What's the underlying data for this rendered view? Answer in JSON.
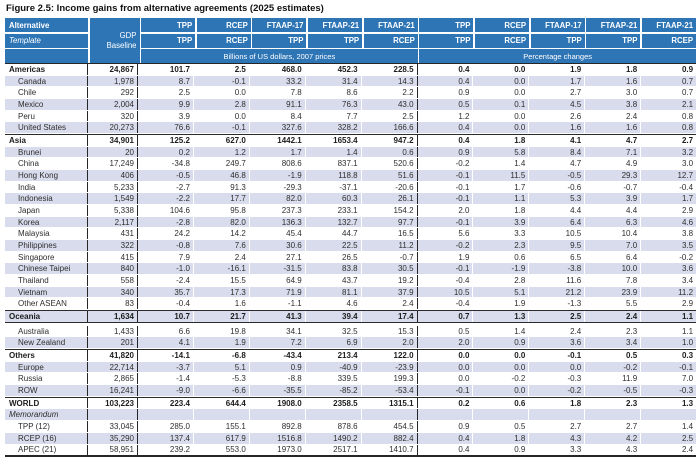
{
  "chart_data": {
    "type": "table",
    "title": "Figure 2.5: Income gains from alternative agreements (2025 estimates)",
    "corner": {
      "alternative": "Alternative",
      "template": "Template",
      "gdp": "GDP Baseline"
    },
    "column_groups": [
      "Billions of US dollars, 2007 prices",
      "Percentage changes"
    ],
    "alternatives": [
      "TPP",
      "RCEP",
      "FTAAP-17",
      "FTAAP-21",
      "FTAAP-21",
      "TPP",
      "RCEP",
      "FTAAP-17",
      "FTAAP-21",
      "FTAAP-21"
    ],
    "templates": [
      "TPP",
      "RCEP",
      "TPP",
      "TPP",
      "RCEP",
      "TPP",
      "RCEP",
      "TPP",
      "TPP",
      "RCEP"
    ],
    "rows": [
      {
        "label": "Americas",
        "style": "section",
        "gdp": "24,867",
        "values": [
          "101.7",
          "2.5",
          "468.0",
          "452.3",
          "228.5",
          "0.4",
          "0.0",
          "1.9",
          "1.8",
          "0.9"
        ]
      },
      {
        "label": "Canada",
        "style": "member",
        "gdp": "1,978",
        "values": [
          "8.7",
          "-0.1",
          "33.2",
          "31.4",
          "14.3",
          "0.4",
          "0.0",
          "1.7",
          "1.6",
          "0.7"
        ]
      },
      {
        "label": "Chile",
        "style": "member",
        "gdp": "292",
        "values": [
          "2.5",
          "0.0",
          "7.8",
          "8.6",
          "2.2",
          "0.9",
          "0.0",
          "2.7",
          "3.0",
          "0.7"
        ]
      },
      {
        "label": "Mexico",
        "style": "member",
        "gdp": "2,004",
        "values": [
          "9.9",
          "2.8",
          "91.1",
          "76.3",
          "43.0",
          "0.5",
          "0.1",
          "4.5",
          "3.8",
          "2.1"
        ]
      },
      {
        "label": "Peru",
        "style": "member",
        "gdp": "320",
        "values": [
          "3.9",
          "0.0",
          "8.4",
          "7.7",
          "2.5",
          "1.2",
          "0.0",
          "2.6",
          "2.4",
          "0.8"
        ]
      },
      {
        "label": "United States",
        "style": "member",
        "gdp": "20,273",
        "values": [
          "76.6",
          "-0.1",
          "327.6",
          "328.2",
          "166.6",
          "0.4",
          "0.0",
          "1.6",
          "1.6",
          "0.8"
        ]
      },
      {
        "label": "Asia",
        "style": "section",
        "top_border": true,
        "gdp": "34,901",
        "values": [
          "125.2",
          "627.0",
          "1442.1",
          "1653.4",
          "947.2",
          "0.4",
          "1.8",
          "4.1",
          "4.7",
          "2.7"
        ]
      },
      {
        "label": "Brunei",
        "style": "member",
        "gdp": "20",
        "values": [
          "0.2",
          "1.2",
          "1.7",
          "1.4",
          "0.6",
          "0.9",
          "5.8",
          "8.4",
          "7.1",
          "3.2"
        ]
      },
      {
        "label": "China",
        "style": "member",
        "gdp": "17,249",
        "values": [
          "-34.8",
          "249.7",
          "808.6",
          "837.1",
          "520.6",
          "-0.2",
          "1.4",
          "4.7",
          "4.9",
          "3.0"
        ]
      },
      {
        "label": "Hong Kong",
        "style": "member",
        "gdp": "406",
        "values": [
          "-0.5",
          "46.8",
          "-1.9",
          "118.8",
          "51.6",
          "-0.1",
          "11.5",
          "-0.5",
          "29.3",
          "12.7"
        ]
      },
      {
        "label": "India",
        "style": "member",
        "gdp": "5,233",
        "values": [
          "-2.7",
          "91.3",
          "-29.3",
          "-37.1",
          "-20.6",
          "-0.1",
          "1.7",
          "-0.6",
          "-0.7",
          "-0.4"
        ]
      },
      {
        "label": "Indonesia",
        "style": "member",
        "gdp": "1,549",
        "values": [
          "-2.2",
          "17.7",
          "82.0",
          "60.3",
          "26.1",
          "-0.1",
          "1.1",
          "5.3",
          "3.9",
          "1.7"
        ]
      },
      {
        "label": "Japan",
        "style": "member",
        "gdp": "5,338",
        "values": [
          "104.6",
          "95.8",
          "237.3",
          "233.1",
          "154.2",
          "2.0",
          "1.8",
          "4.4",
          "4.4",
          "2.9"
        ]
      },
      {
        "label": "Korea",
        "style": "member",
        "gdp": "2,117",
        "values": [
          "-2.8",
          "82.0",
          "136.3",
          "132.7",
          "97.7",
          "-0.1",
          "3.9",
          "6.4",
          "6.3",
          "4.6"
        ]
      },
      {
        "label": "Malaysia",
        "style": "member",
        "gdp": "431",
        "values": [
          "24.2",
          "14.2",
          "45.4",
          "44.7",
          "16.5",
          "5.6",
          "3.3",
          "10.5",
          "10.4",
          "3.8"
        ]
      },
      {
        "label": "Philippines",
        "style": "member",
        "gdp": "322",
        "values": [
          "-0.8",
          "7.6",
          "30.6",
          "22.5",
          "11.2",
          "-0.2",
          "2.3",
          "9.5",
          "7.0",
          "3.5"
        ]
      },
      {
        "label": "Singapore",
        "style": "member",
        "gdp": "415",
        "values": [
          "7.9",
          "2.4",
          "27.1",
          "26.5",
          "-0.7",
          "1.9",
          "0.6",
          "6.5",
          "6.4",
          "-0.2"
        ]
      },
      {
        "label": "Chinese Taipei",
        "style": "member",
        "gdp": "840",
        "values": [
          "-1.0",
          "-16.1",
          "-31.5",
          "83.8",
          "30.5",
          "-0.1",
          "-1.9",
          "-3.8",
          "10.0",
          "3.6"
        ]
      },
      {
        "label": "Thailand",
        "style": "member",
        "gdp": "558",
        "values": [
          "-2.4",
          "15.5",
          "64.9",
          "43.7",
          "19.2",
          "-0.4",
          "2.8",
          "11.6",
          "7.8",
          "3.4"
        ]
      },
      {
        "label": "Vietnam",
        "style": "member",
        "gdp": "340",
        "values": [
          "35.7",
          "17.3",
          "71.9",
          "81.1",
          "37.9",
          "10.5",
          "5.1",
          "21.2",
          "23.9",
          "11.2"
        ]
      },
      {
        "label": "Other ASEAN",
        "style": "member",
        "gdp": "83",
        "values": [
          "-0.4",
          "1.6",
          "-1.1",
          "4.6",
          "2.4",
          "-0.4",
          "1.9",
          "-1.3",
          "5.5",
          "2.9"
        ]
      },
      {
        "label": "Oceania",
        "style": "section",
        "top_border": true,
        "bottom_border": true,
        "gap_after": true,
        "gdp": "1,634",
        "values": [
          "10.7",
          "21.7",
          "41.3",
          "39.4",
          "17.4",
          "0.7",
          "1.3",
          "2.5",
          "2.4",
          "1.1"
        ]
      },
      {
        "label": "Australia",
        "style": "member",
        "gdp": "1,433",
        "values": [
          "6.6",
          "19.8",
          "34.1",
          "32.5",
          "15.3",
          "0.5",
          "1.4",
          "2.4",
          "2.3",
          "1.1"
        ]
      },
      {
        "label": "New Zealand",
        "style": "member",
        "gdp": "201",
        "values": [
          "4.1",
          "1.9",
          "7.2",
          "6.9",
          "2.0",
          "2.0",
          "0.9",
          "3.6",
          "3.4",
          "1.0"
        ]
      },
      {
        "label": "Others",
        "style": "section",
        "top_border": true,
        "gdp": "41,820",
        "values": [
          "-14.1",
          "-6.8",
          "-43.4",
          "213.4",
          "122.0",
          "0.0",
          "0.0",
          "-0.1",
          "0.5",
          "0.3"
        ]
      },
      {
        "label": "Europe",
        "style": "member",
        "gdp": "22,714",
        "values": [
          "-3.7",
          "5.1",
          "0.9",
          "-40.9",
          "-23.9",
          "0.0",
          "0.0",
          "0.0",
          "-0.2",
          "-0.1"
        ]
      },
      {
        "label": "Russia",
        "style": "member",
        "gdp": "2,865",
        "values": [
          "-1.4",
          "-5.3",
          "-8.8",
          "339.5",
          "199.3",
          "0.0",
          "-0.2",
          "-0.3",
          "11.9",
          "7.0"
        ]
      },
      {
        "label": "ROW",
        "style": "member",
        "gdp": "16,241",
        "values": [
          "-9.0",
          "-6.6",
          "-35.5",
          "-85.2",
          "-53.4",
          "-0.1",
          "0.0",
          "-0.2",
          "-0.5",
          "-0.3"
        ]
      },
      {
        "label": "WORLD",
        "style": "section",
        "top_border": true,
        "gdp": "103,223",
        "values": [
          "223.4",
          "644.4",
          "1908.0",
          "2358.5",
          "1315.1",
          "0.2",
          "0.6",
          "1.8",
          "2.3",
          "1.3"
        ]
      },
      {
        "label": "Memorandum",
        "style": "note",
        "gdp": "",
        "values": [
          "",
          "",
          "",
          "",
          "",
          "",
          "",
          "",
          "",
          ""
        ]
      },
      {
        "label": "TPP (12)",
        "style": "member",
        "gdp": "33,045",
        "values": [
          "285.0",
          "155.1",
          "892.8",
          "878.6",
          "454.5",
          "0.9",
          "0.5",
          "2.7",
          "2.7",
          "1.4"
        ]
      },
      {
        "label": "RCEP (16)",
        "style": "member",
        "gdp": "35,290",
        "values": [
          "137.4",
          "617.9",
          "1516.8",
          "1490.2",
          "882.4",
          "0.4",
          "1.8",
          "4.3",
          "4.2",
          "2.5"
        ]
      },
      {
        "label": "APEC (21)",
        "style": "member",
        "gdp": "58,951",
        "values": [
          "239.2",
          "553.0",
          "1973.0",
          "2517.1",
          "1410.7",
          "0.4",
          "0.9",
          "3.3",
          "4.3",
          "2.4"
        ]
      }
    ],
    "colors": {
      "header_blue": "#2E75B6",
      "row_shade": "#D9DCEC",
      "border_dark": "#262626"
    }
  }
}
